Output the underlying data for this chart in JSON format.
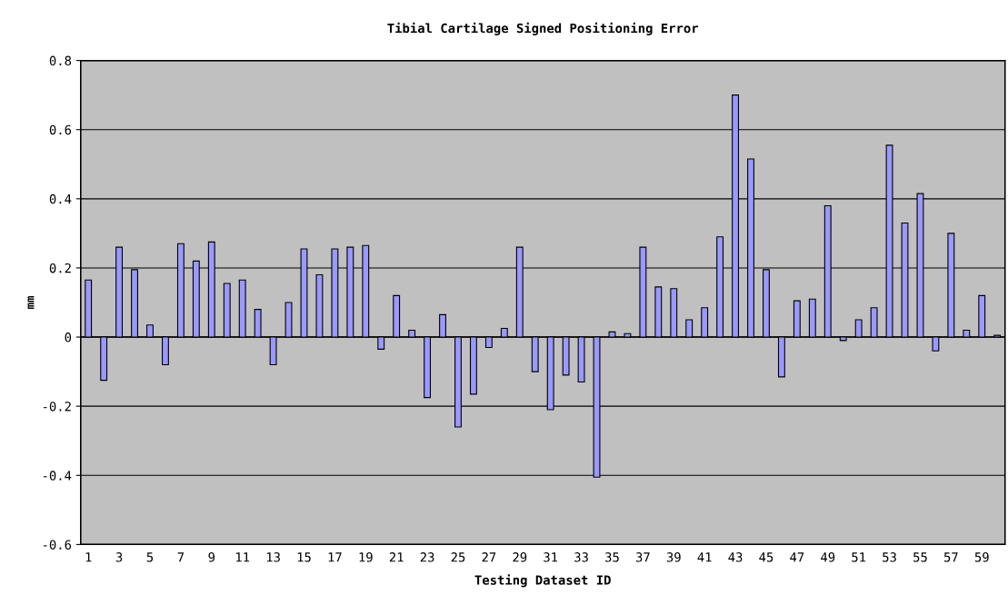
{
  "chart_data": {
    "type": "bar",
    "title": "Tibial Cartilage Signed Positioning Error",
    "xlabel": "Testing Dataset ID",
    "ylabel": "mm",
    "categories": [
      "1",
      null,
      "3",
      null,
      "5",
      null,
      "7",
      null,
      "9",
      null,
      "11",
      null,
      "13",
      null,
      "15",
      null,
      "17",
      null,
      "19",
      null,
      "21",
      null,
      "23",
      null,
      "25",
      null,
      "27",
      null,
      "29",
      null,
      "31",
      null,
      "33",
      null,
      "35",
      null,
      "37",
      null,
      "39",
      null,
      "41",
      null,
      "43",
      null,
      "45",
      null,
      "47",
      null,
      "49",
      null,
      "51",
      null,
      "53",
      null,
      "55",
      null,
      "57",
      null,
      "59",
      null
    ],
    "values": [
      0.165,
      -0.125,
      0.26,
      0.195,
      0.035,
      -0.08,
      0.27,
      0.22,
      0.275,
      0.155,
      0.165,
      0.08,
      -0.08,
      0.1,
      0.255,
      0.18,
      0.255,
      0.26,
      0.265,
      -0.035,
      0.12,
      0.02,
      -0.175,
      0.065,
      -0.26,
      -0.165,
      -0.03,
      0.025,
      0.26,
      -0.1,
      -0.21,
      -0.11,
      -0.13,
      -0.405,
      0.015,
      0.01,
      0.26,
      0.145,
      0.14,
      0.05,
      0.085,
      0.29,
      0.7,
      0.515,
      0.195,
      -0.115,
      0.105,
      0.11,
      0.38,
      -0.01,
      0.05,
      0.085,
      0.555,
      0.33,
      0.415,
      -0.04,
      0.3,
      0.02,
      0.12,
      0.005
    ],
    "color": "#9999ff",
    "ylim": [
      -0.6,
      0.8
    ],
    "yticks": [
      -0.6,
      -0.4,
      -0.2,
      0,
      0.2,
      0.4,
      0.6,
      0.8
    ],
    "grid": "y"
  }
}
